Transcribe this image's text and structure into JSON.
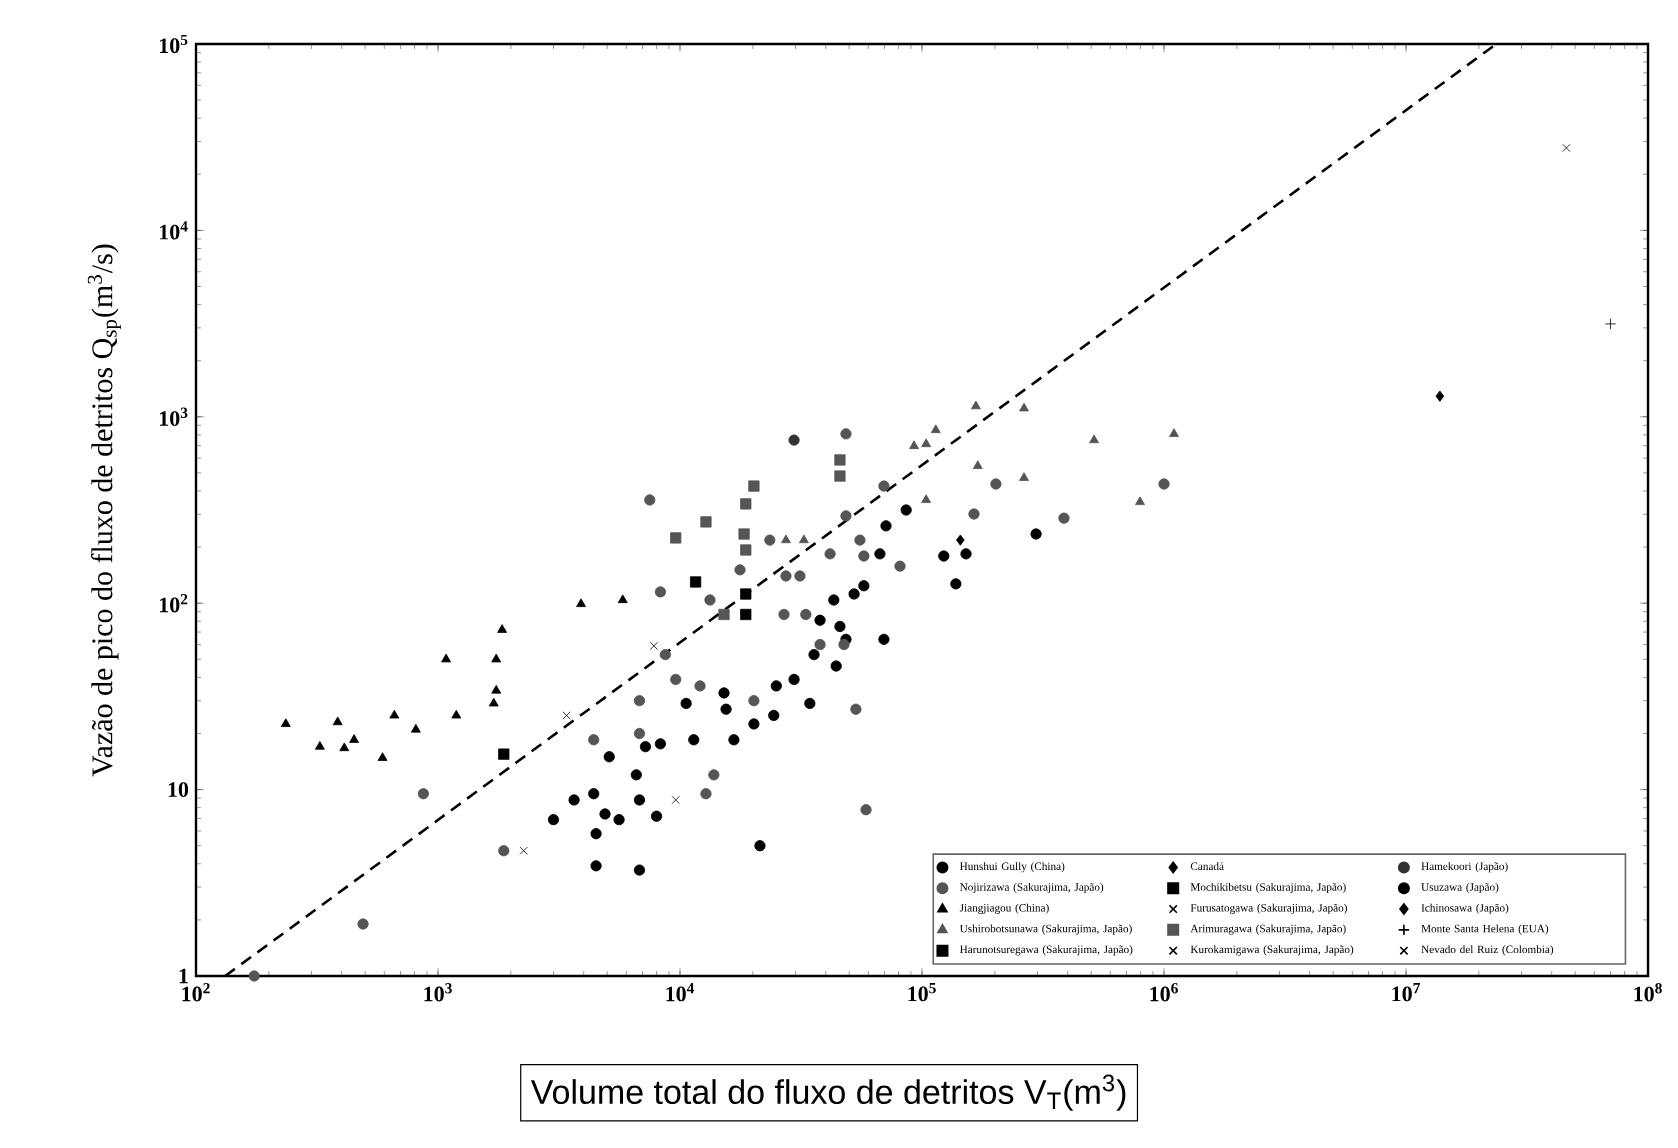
{
  "chart_data": {
    "type": "scatter",
    "xlabel": "Volume total do fluxo de detritos V$_{T}$(m$^{3}$)",
    "ylabel": "Vazão de pico do fluxo de detritos Q$_{sp}$(m$^{3}$/s)",
    "log": "xy",
    "grid": false,
    "legend": "bottom right",
    "xlim": [
      100,
      100000000
    ],
    "ylim": [
      1,
      100000
    ],
    "xticks": [
      {
        "value": 100,
        "label": "10$^{2}$"
      },
      {
        "value": 1000,
        "label": "10$^{3}$"
      },
      {
        "value": 10000,
        "label": "10$^{4}$"
      },
      {
        "value": 100000,
        "label": "10$^{5}$"
      },
      {
        "value": 1000000,
        "label": "10$^{6}$"
      },
      {
        "value": 10000000,
        "label": "10$^{7}$"
      },
      {
        "value": 100000000,
        "label": "10$^{8}$"
      }
    ],
    "yticks": [
      1,
      10,
      {
        "value": 100,
        "label": "10$^{2}$"
      },
      {
        "value": 1000,
        "label": "10$^{3}$"
      },
      {
        "value": 10000,
        "label": "10$^{4}$"
      },
      {
        "value": 100000,
        "label": "10$^{5}$"
      }
    ],
    "series": [
      {
        "type": "line",
        "color": "#000000",
        "line_style": "dashed",
        "marker": "none",
        "x": [
          132,
          23600000
        ],
        "values": [
          1,
          100000
        ]
      },
      {
        "name": "Hunshui Gully (China)",
        "color": "#000000",
        "marker": "circle",
        "x": [
          3000,
          3650,
          4500,
          4400,
          4900,
          5600,
          4500,
          6800,
          6600,
          6800,
          8000,
          7200,
          8300,
          5100,
          11400,
          10600,
          15200,
          15500,
          16700,
          21400,
          20200,
          24400,
          25000,
          29600,
          34400,
          35800,
          37900,
          44200,
          45800,
          52400,
          57500,
          69600,
          71000,
          67000,
          86000,
          123000,
          152000,
          138000,
          48500,
          43200
        ],
        "values": [
          6.9,
          8.8,
          5.8,
          9.5,
          7.4,
          6.9,
          3.9,
          3.7,
          12,
          8.8,
          7.2,
          17,
          17.6,
          15,
          18.5,
          29,
          33,
          27,
          18.5,
          5.0,
          22.5,
          25,
          36,
          39,
          29,
          53,
          81,
          46,
          75,
          112,
          124,
          64,
          260,
          184,
          316,
          179,
          184,
          127,
          64,
          104
        ]
      },
      {
        "name": "Canadá",
        "color": "#000000",
        "marker": "diamond",
        "x": [
          13800000
        ],
        "values": [
          1290
        ]
      },
      {
        "name": "Hamekoori (Japão)",
        "color": "#333333",
        "marker": "circle",
        "x": [
          29600
        ],
        "values": [
          750
        ]
      },
      {
        "name": "Nojirizawa (Sakurajima, Japão)",
        "color": "#555555",
        "marker": "circle",
        "x": [
          7500,
          48500,
          17700,
          8300,
          13300,
          23500,
          27400,
          41700,
          48500,
          55400,
          26900,
          33100,
          8700,
          9600,
          6800,
          12100,
          20200,
          4400,
          6800,
          870,
          1870,
          490,
          13800,
          12800,
          53300,
          58700,
          37900,
          47600,
          69600,
          164000,
          202000,
          386000,
          1000000,
          31300,
          57500,
          81100,
          174
        ],
        "values": [
          358,
          810,
          151,
          115,
          104,
          218,
          140,
          184,
          294,
          218,
          87,
          87,
          53,
          39,
          30,
          36,
          30,
          18.5,
          20,
          9.5,
          4.7,
          1.9,
          12,
          9.5,
          27,
          7.8,
          60,
          60,
          425,
          301,
          436,
          286,
          436,
          140,
          179,
          158,
          1
        ]
      },
      {
        "name": "Mochikibetsu (Sakurajima, Japão)",
        "color": "#000000",
        "marker": "square",
        "x": [
          11600,
          18700,
          18700
        ],
        "values": [
          130,
          112,
          87
        ]
      },
      {
        "name": "Usuzawa (Japão)",
        "color": "#000000",
        "marker": "circle",
        "x": [
          296000
        ],
        "values": [
          235
        ]
      },
      {
        "name": "Jiangjiagou (China)",
        "color": "#000000",
        "marker": "triangle",
        "x": [
          235,
          325,
          385,
          410,
          450,
          590,
          660,
          810,
          1080,
          1190,
          1740,
          1840,
          1740,
          1700,
          3900,
          5800
        ],
        "values": [
          22.5,
          17,
          23,
          16.7,
          18.5,
          14.8,
          25,
          21,
          50,
          25,
          50,
          72,
          34,
          29,
          99,
          104
        ]
      },
      {
        "name": "Furusatogawa (Sakurajima, Japão)",
        "color": "#000000",
        "marker": "cross",
        "x": [
          3400,
          7800
        ],
        "values": [
          25,
          59
        ]
      },
      {
        "name": "Ichinosawa (Japão)",
        "color": "#000000",
        "marker": "diamond",
        "x": [
          144000
        ],
        "values": [
          218
        ]
      },
      {
        "name": "Ushirobotsunawa (Sakurajima, Japão)",
        "color": "#555555",
        "marker": "triangle",
        "x": [
          514000,
          1100000,
          264000,
          170000,
          796000,
          104000,
          92700,
          104000,
          114000,
          167000,
          264000,
          27400,
          32500
        ],
        "values": [
          750,
          810,
          470,
          545,
          349,
          358,
          697,
          714,
          849,
          1140,
          1110,
          218,
          218
        ]
      },
      {
        "name": "Arimuragawa (Sakurajima, Japão)",
        "color": "#555555",
        "marker": "square",
        "x": [
          9600,
          12800,
          18400,
          18700,
          20200,
          18700,
          45800,
          45800,
          15200
        ],
        "values": [
          224,
          273,
          235,
          341,
          425,
          193,
          587,
          481,
          87
        ]
      },
      {
        "name": "Monte Santa Helena (EUA)",
        "color": "#000000",
        "marker": "plus",
        "x": [
          70000000
        ],
        "values": [
          3150
        ]
      },
      {
        "name": "Harunotsuregawa (Sakurajima, Japão)",
        "color": "#000000",
        "marker": "square",
        "x": [
          1870
        ],
        "values": [
          15.5
        ]
      },
      {
        "name": "Kurokamigawa (Sakurajima, Japão)",
        "color": "#000000",
        "marker": "cross",
        "x": [
          2260,
          9600
        ],
        "values": [
          4.7,
          8.8
        ]
      },
      {
        "name": "Nevado del Ruiz (Colombia)",
        "color": "#000000",
        "marker": "cross",
        "x": [
          46000000
        ],
        "values": [
          27700
        ]
      }
    ]
  }
}
